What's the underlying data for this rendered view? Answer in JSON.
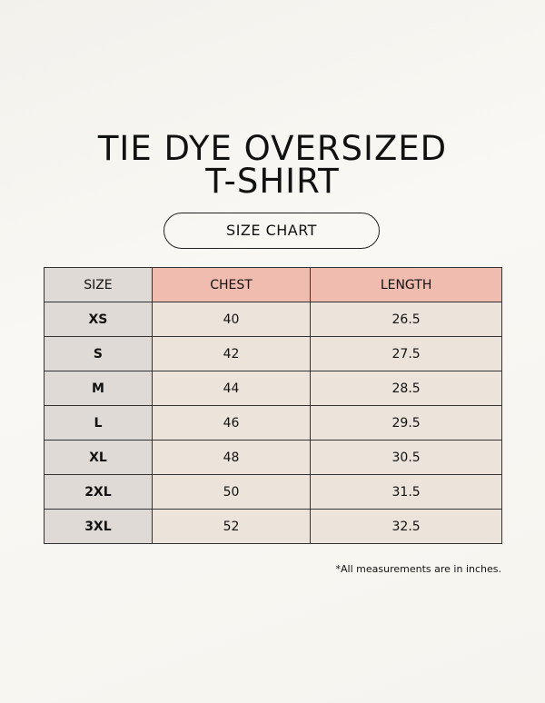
{
  "header": {
    "title_line1": "TIE DYE OVERSIZED",
    "title_line2": "T-SHIRT",
    "badge": "SIZE CHART"
  },
  "table": {
    "columns": [
      "SIZE",
      "CHEST",
      "LENGTH"
    ],
    "rows": [
      [
        "XS",
        "40",
        "26.5"
      ],
      [
        "S",
        "42",
        "27.5"
      ],
      [
        "M",
        "44",
        "28.5"
      ],
      [
        "L",
        "46",
        "29.5"
      ],
      [
        "XL",
        "48",
        "30.5"
      ],
      [
        "2XL",
        "50",
        "31.5"
      ],
      [
        "3XL",
        "52",
        "32.5"
      ]
    ]
  },
  "footnote": "*All measurements are in inches."
}
